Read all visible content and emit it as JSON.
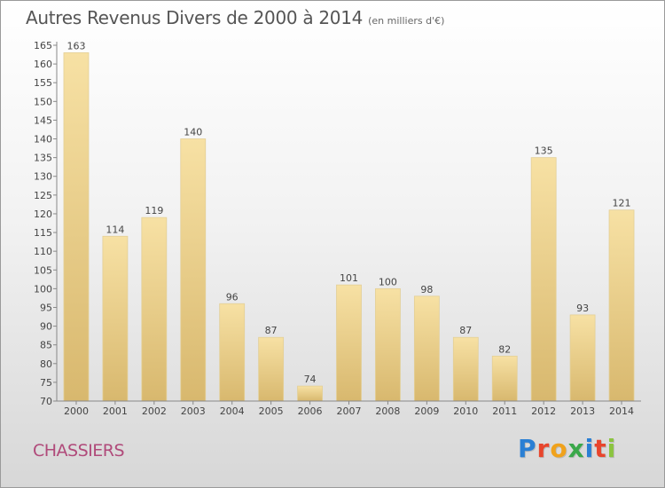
{
  "header": {
    "title": "Autres Revenus Divers de 2000 à 2014",
    "subtitle": "(en milliers d'€)"
  },
  "footer": {
    "commune": "CHASSIERS",
    "brand": "Proxiti",
    "brand_colors": [
      "#2a7fd4",
      "#e8452c",
      "#f0a21c",
      "#3aa84a",
      "#2a7fd4",
      "#e8452c",
      "#8bc43f"
    ]
  },
  "chart_data": {
    "type": "bar",
    "categories": [
      "2000",
      "2001",
      "2002",
      "2003",
      "2004",
      "2005",
      "2006",
      "2007",
      "2008",
      "2009",
      "2010",
      "2011",
      "2012",
      "2013",
      "2014"
    ],
    "values": [
      163,
      114,
      119,
      140,
      96,
      87,
      74,
      101,
      100,
      98,
      87,
      82,
      135,
      93,
      121
    ],
    "ylim": [
      70,
      165
    ],
    "yticks": [
      70,
      75,
      80,
      85,
      90,
      95,
      100,
      105,
      110,
      115,
      120,
      125,
      130,
      135,
      140,
      145,
      150,
      155,
      160,
      165
    ],
    "grid": false,
    "bar_color_light": "#f7e1a4",
    "bar_color_dark": "#d8b86e"
  }
}
